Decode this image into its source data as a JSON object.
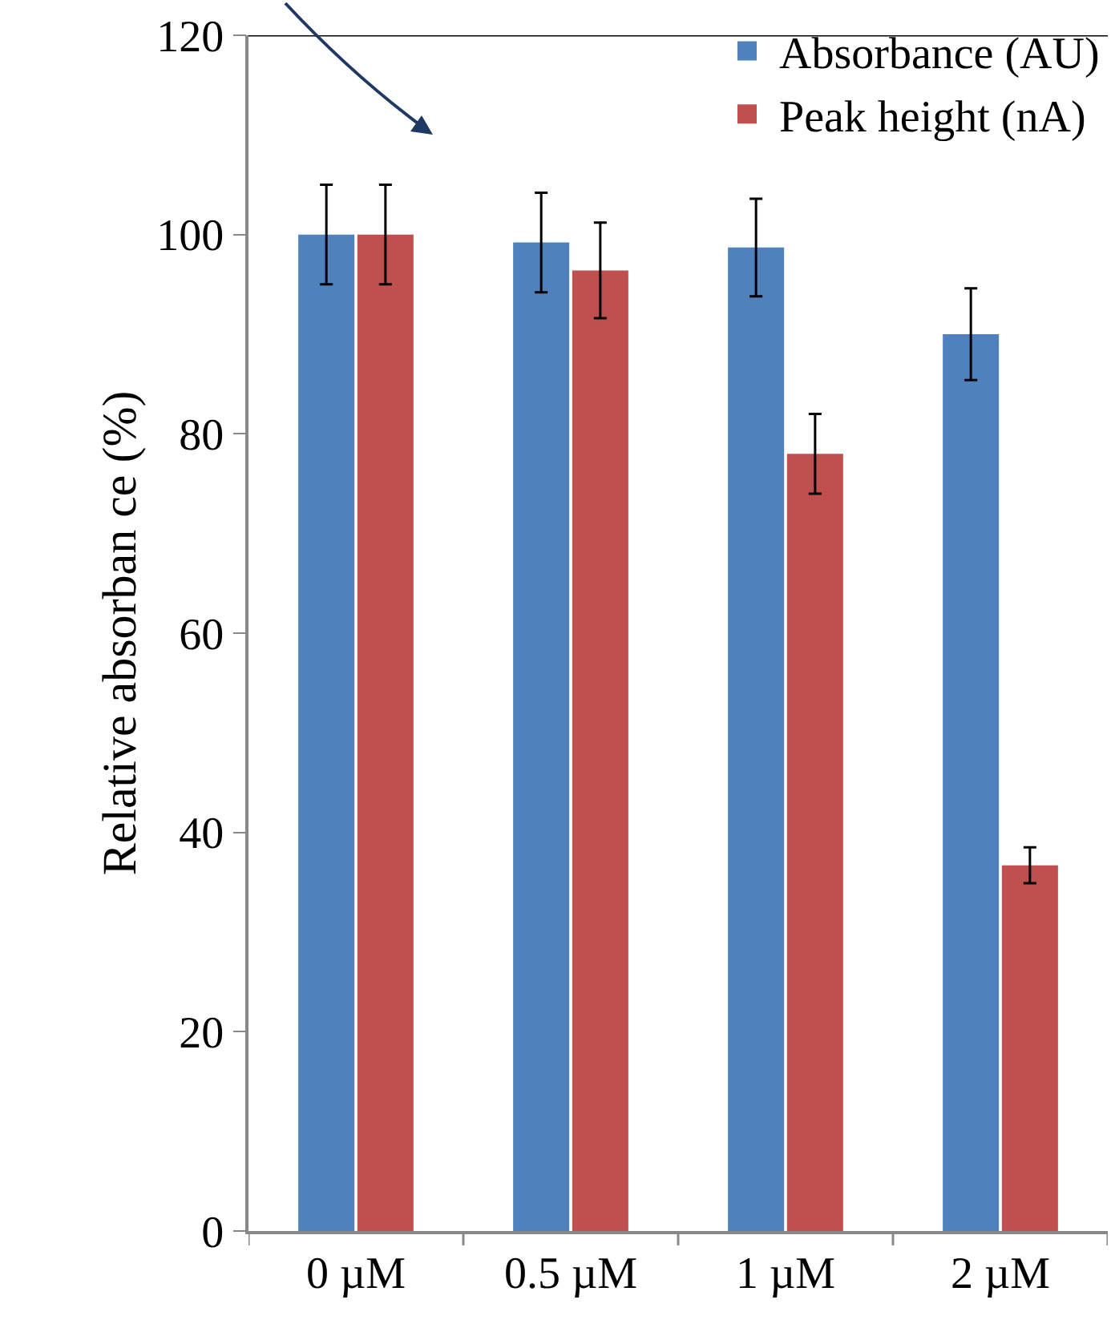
{
  "chart_data": {
    "type": "bar",
    "ylabel": "Relative absorban ce (%)",
    "categories": [
      "0 µM",
      "0.5 µM",
      "1 µM",
      "2 µM"
    ],
    "series": [
      {
        "name": "Absorbance (AU)",
        "color": "#4f81bd",
        "values": [
          100,
          99.2,
          98.7,
          90
        ],
        "errors": [
          5,
          5,
          4.9,
          4.6
        ]
      },
      {
        "name": "Peak height (nA)",
        "color": "#c0504d",
        "values": [
          100,
          96.4,
          78,
          36.7
        ],
        "errors": [
          5,
          4.8,
          4,
          1.8
        ]
      }
    ],
    "ylim": [
      0,
      120
    ],
    "yticks": [
      0,
      20,
      40,
      60,
      80,
      100,
      120
    ],
    "grid": false,
    "legend": "top right"
  }
}
